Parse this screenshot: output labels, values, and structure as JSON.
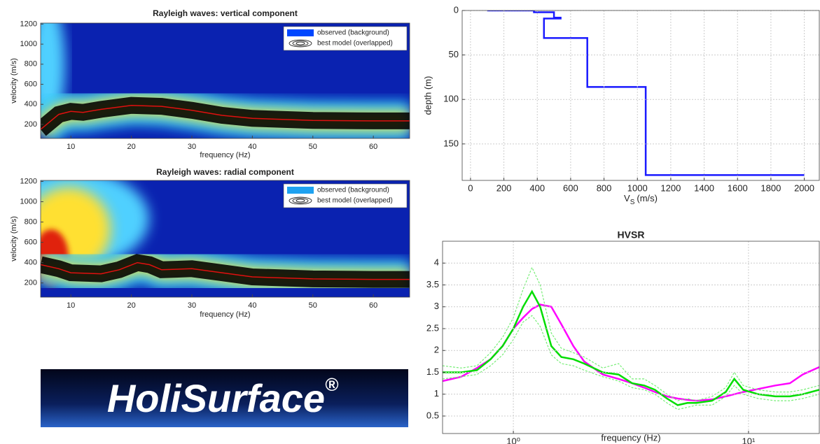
{
  "chart_data": [
    {
      "type": "heatmap",
      "title": "Rayleigh waves: vertical component",
      "x_label": "frequency (Hz)",
      "y_label": "velocity (m/s)",
      "xlim": [
        5,
        66
      ],
      "ylim": [
        60,
        1210
      ],
      "xticks": [
        10,
        20,
        30,
        40,
        50,
        60
      ],
      "yticks": [
        200,
        400,
        600,
        800,
        1000,
        1200
      ],
      "series": [
        {
          "name": "observed (background)",
          "color": "#0047ff"
        },
        {
          "name": "best model (overlapped)",
          "color": "#e01010",
          "x": [
            5,
            8,
            10,
            12,
            15,
            20,
            25,
            30,
            35,
            40,
            50,
            60,
            66
          ],
          "values": [
            150,
            300,
            330,
            320,
            350,
            390,
            380,
            340,
            290,
            260,
            240,
            235,
            235
          ]
        }
      ]
    },
    {
      "type": "heatmap",
      "title": "Rayleigh waves: radial component",
      "x_label": "frequency (Hz)",
      "y_label": "velocity (m/s)",
      "xlim": [
        5,
        66
      ],
      "ylim": [
        60,
        1210
      ],
      "xticks": [
        10,
        20,
        30,
        40,
        50,
        60
      ],
      "yticks": [
        200,
        400,
        600,
        800,
        1000,
        1200
      ],
      "series": [
        {
          "name": "observed (background)",
          "color": "#1fa2f0"
        },
        {
          "name": "best model (overlapped)",
          "color": "#e01010",
          "x": [
            5,
            8,
            10,
            15,
            18,
            21,
            23,
            25,
            30,
            35,
            40,
            50,
            60,
            66
          ],
          "values": [
            380,
            340,
            300,
            290,
            330,
            400,
            380,
            330,
            340,
            300,
            260,
            240,
            235,
            235
          ]
        }
      ]
    },
    {
      "type": "line",
      "x_label": {
        "text": "V",
        "subscript": "S",
        "unit": "(m/s)"
      },
      "y_label": "depth (m)",
      "xlim": [
        -50,
        2090
      ],
      "ylim": [
        0,
        191
      ],
      "y_reversed": true,
      "grid": true,
      "xticks": [
        0,
        200,
        400,
        600,
        800,
        1000,
        1200,
        1400,
        1600,
        1800,
        2000
      ],
      "yticks": [
        0,
        50,
        100,
        150
      ],
      "series": [
        {
          "color": "#1a1aff",
          "x": [
            100,
            380,
            380,
            500,
            500,
            540,
            540,
            440,
            440,
            700,
            700,
            1050,
            1050,
            2000
          ],
          "values": [
            0,
            0,
            2,
            2,
            8,
            8,
            9,
            9,
            31,
            31,
            86,
            86,
            185,
            185
          ]
        }
      ]
    },
    {
      "type": "line",
      "title": "HVSR",
      "x_label": "frequency (Hz)",
      "log_x": true,
      "grid": true,
      "xlim": [
        0.5,
        20
      ],
      "ylim": [
        0.1,
        4.5
      ],
      "xticks": [
        {
          "value": 1,
          "label": "10⁰"
        },
        {
          "value": 10,
          "label": "10¹"
        }
      ],
      "yticks": [
        0.5,
        1,
        1.5,
        2,
        2.5,
        3,
        3.5,
        4
      ],
      "x": [
        0.5,
        0.6,
        0.7,
        0.8,
        0.9,
        1.0,
        1.1,
        1.2,
        1.3,
        1.45,
        1.6,
        1.8,
        2.0,
        2.4,
        2.8,
        3.2,
        3.6,
        4.0,
        4.5,
        5,
        5.5,
        6,
        7,
        8,
        8.7,
        9.5,
        11,
        13,
        15,
        17,
        20
      ],
      "series": [
        {
          "color": "#ff00ff",
          "values": [
            1.3,
            1.4,
            1.6,
            1.8,
            2.1,
            2.5,
            2.75,
            2.95,
            3.05,
            3.0,
            2.6,
            2.1,
            1.75,
            1.45,
            1.35,
            1.25,
            1.15,
            1.05,
            0.95,
            0.9,
            0.87,
            0.85,
            0.88,
            0.95,
            1.0,
            1.05,
            1.12,
            1.2,
            1.25,
            1.45,
            1.62
          ]
        },
        {
          "color": "#77ee77",
          "style": "dashed",
          "values": [
            1.65,
            1.6,
            1.65,
            1.95,
            2.3,
            2.75,
            3.4,
            3.9,
            3.5,
            2.4,
            2.05,
            1.95,
            1.85,
            1.6,
            1.7,
            1.35,
            1.35,
            1.2,
            1.0,
            0.85,
            0.9,
            0.85,
            0.95,
            1.15,
            1.5,
            1.2,
            1.1,
            1.05,
            1.05,
            1.1,
            1.2
          ]
        },
        {
          "color": "#77ee77",
          "style": "dashed",
          "values": [
            1.35,
            1.4,
            1.45,
            1.65,
            1.9,
            2.25,
            2.65,
            2.8,
            2.55,
            1.9,
            1.7,
            1.65,
            1.55,
            1.4,
            1.3,
            1.15,
            1.1,
            1.0,
            0.8,
            0.65,
            0.7,
            0.75,
            0.75,
            0.95,
            1.2,
            1.0,
            0.9,
            0.85,
            0.85,
            0.9,
            1.0
          ]
        },
        {
          "color": "#00dd00",
          "values": [
            1.5,
            1.5,
            1.55,
            1.8,
            2.1,
            2.5,
            3.0,
            3.35,
            3.0,
            2.1,
            1.85,
            1.8,
            1.7,
            1.5,
            1.45,
            1.25,
            1.2,
            1.1,
            0.9,
            0.75,
            0.8,
            0.8,
            0.85,
            1.05,
            1.35,
            1.1,
            1.0,
            0.95,
            0.95,
            1.0,
            1.1
          ]
        }
      ]
    }
  ],
  "logo": {
    "text": "HoliSurface",
    "mark": "®"
  }
}
